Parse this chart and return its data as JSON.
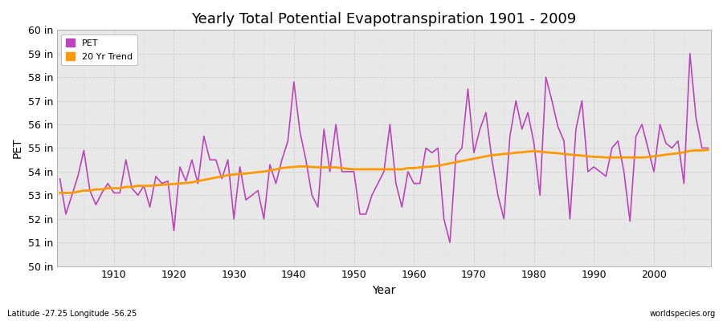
{
  "title": "Yearly Total Potential Evapotranspiration 1901 - 2009",
  "xlabel": "Year",
  "ylabel": "PET",
  "subtitle": "Latitude -27.25 Longitude -56.25",
  "watermark": "worldspecies.org",
  "years": [
    1901,
    1902,
    1903,
    1904,
    1905,
    1906,
    1907,
    1908,
    1909,
    1910,
    1911,
    1912,
    1913,
    1914,
    1915,
    1916,
    1917,
    1918,
    1919,
    1920,
    1921,
    1922,
    1923,
    1924,
    1925,
    1926,
    1927,
    1928,
    1929,
    1930,
    1931,
    1932,
    1933,
    1934,
    1935,
    1936,
    1937,
    1938,
    1939,
    1940,
    1941,
    1942,
    1943,
    1944,
    1945,
    1946,
    1947,
    1948,
    1949,
    1950,
    1951,
    1952,
    1953,
    1954,
    1955,
    1956,
    1957,
    1958,
    1959,
    1960,
    1961,
    1962,
    1963,
    1964,
    1965,
    1966,
    1967,
    1968,
    1969,
    1970,
    1971,
    1972,
    1973,
    1974,
    1975,
    1976,
    1977,
    1978,
    1979,
    1980,
    1981,
    1982,
    1983,
    1984,
    1985,
    1986,
    1987,
    1988,
    1989,
    1990,
    1991,
    1992,
    1993,
    1994,
    1995,
    1996,
    1997,
    1998,
    1999,
    2000,
    2001,
    2002,
    2003,
    2004,
    2005,
    2006,
    2007,
    2008,
    2009
  ],
  "pet": [
    53.7,
    52.2,
    53.0,
    53.8,
    54.9,
    53.2,
    52.6,
    53.1,
    53.5,
    53.1,
    53.1,
    54.5,
    53.3,
    53.0,
    53.4,
    52.5,
    53.8,
    53.5,
    53.6,
    51.5,
    54.2,
    53.6,
    54.5,
    53.5,
    55.5,
    54.5,
    54.5,
    53.7,
    54.5,
    52.0,
    54.2,
    52.8,
    53.0,
    53.2,
    52.0,
    54.3,
    53.5,
    54.5,
    55.3,
    57.8,
    55.7,
    54.5,
    53.0,
    52.5,
    55.8,
    54.0,
    56.0,
    54.0,
    54.0,
    54.0,
    52.2,
    52.2,
    53.0,
    53.5,
    54.0,
    56.0,
    53.5,
    52.5,
    54.0,
    53.5,
    53.5,
    55.0,
    54.8,
    55.0,
    52.0,
    51.0,
    54.7,
    55.0,
    57.5,
    54.8,
    55.8,
    56.5,
    54.5,
    53.0,
    52.0,
    55.5,
    57.0,
    55.8,
    56.5,
    55.2,
    53.0,
    58.0,
    57.0,
    55.9,
    55.3,
    52.0,
    55.8,
    57.0,
    54.0,
    54.2,
    54.0,
    53.8,
    55.0,
    55.3,
    54.0,
    51.9,
    55.5,
    56.0,
    55.0,
    54.0,
    56.0,
    55.2,
    55.0,
    55.3,
    53.5,
    59.0,
    56.3,
    55.0,
    55.0
  ],
  "trend": [
    53.1,
    53.1,
    53.1,
    53.15,
    53.2,
    53.2,
    53.25,
    53.25,
    53.3,
    53.3,
    53.3,
    53.35,
    53.35,
    53.4,
    53.4,
    53.4,
    53.42,
    53.44,
    53.46,
    53.48,
    53.5,
    53.52,
    53.55,
    53.6,
    53.65,
    53.7,
    53.75,
    53.8,
    53.85,
    53.88,
    53.9,
    53.92,
    53.95,
    53.98,
    54.0,
    54.05,
    54.1,
    54.15,
    54.18,
    54.2,
    54.22,
    54.22,
    54.2,
    54.18,
    54.18,
    54.18,
    54.18,
    54.15,
    54.12,
    54.1,
    54.1,
    54.1,
    54.1,
    54.1,
    54.1,
    54.1,
    54.1,
    54.1,
    54.15,
    54.15,
    54.18,
    54.2,
    54.22,
    54.25,
    54.3,
    54.35,
    54.4,
    54.45,
    54.5,
    54.55,
    54.6,
    54.65,
    54.7,
    54.72,
    54.75,
    54.77,
    54.8,
    54.82,
    54.85,
    54.87,
    54.85,
    54.82,
    54.8,
    54.78,
    54.75,
    54.72,
    54.7,
    54.68,
    54.65,
    54.63,
    54.62,
    54.6,
    54.6,
    54.6,
    54.6,
    54.6,
    54.6,
    54.6,
    54.62,
    54.65,
    54.68,
    54.72,
    54.75,
    54.78,
    54.82,
    54.88,
    54.9,
    54.9,
    54.92
  ],
  "pet_color": "#bb44bb",
  "trend_color": "#ff9900",
  "bg_color": "#ffffff",
  "plot_bg_color": "#e8e8e8",
  "ylim": [
    50,
    60
  ],
  "yticks": [
    50,
    51,
    52,
    53,
    54,
    55,
    56,
    57,
    58,
    59,
    60
  ],
  "ytick_labels": [
    "50 in",
    "51 in",
    "52 in",
    "53 in",
    "54 in",
    "55 in",
    "56 in",
    "57 in",
    "58 in",
    "59 in",
    "60 in"
  ],
  "xticks": [
    1910,
    1920,
    1930,
    1940,
    1950,
    1960,
    1970,
    1980,
    1990,
    2000
  ],
  "title_fontsize": 13,
  "axis_fontsize": 9,
  "legend_fontsize": 8,
  "grid_color": "#cccccc",
  "grid_minor_color": "#dddddd"
}
